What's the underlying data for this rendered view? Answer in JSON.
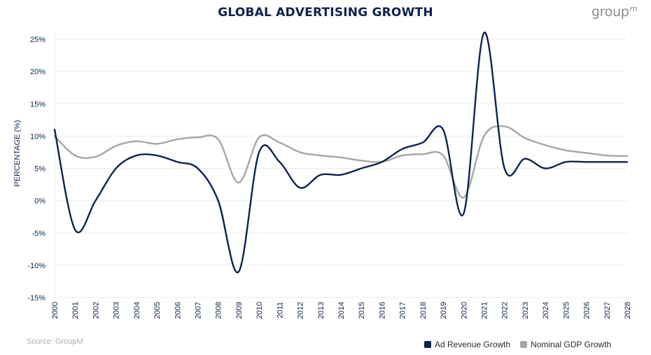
{
  "title": "GLOBAL ADVERTISING GROWTH",
  "brand": {
    "text": "group",
    "superscript": "m"
  },
  "source": "Source: GroupM",
  "colors": {
    "ad_revenue": "#0d2350",
    "nominal_gdp": "#a6a6a6",
    "title": "#0d2350"
  },
  "chart_data": {
    "type": "line",
    "title": "GLOBAL ADVERTISING GROWTH",
    "xlabel": "",
    "ylabel": "PERCENTAGE (%)",
    "ylim": [
      -15,
      25
    ],
    "yticks": [
      -15,
      -10,
      -5,
      0,
      5,
      10,
      15,
      20,
      25
    ],
    "ytick_labels": [
      "-15%",
      "-10%",
      "-5%",
      "0%",
      "5%",
      "10%",
      "15%",
      "20%",
      "25%"
    ],
    "xlim": [
      2000,
      2028
    ],
    "xticks": [
      "2000",
      "2001",
      "2002",
      "2003",
      "2004",
      "2005",
      "2006",
      "2007",
      "2008",
      "2009",
      "2010",
      "2011",
      "2012",
      "2013",
      "2014",
      "2015",
      "2016",
      "2017",
      "2018",
      "2019",
      "2020",
      "2021",
      "2022",
      "2023",
      "2024",
      "2025",
      "2026",
      "2027",
      "2028"
    ],
    "grid": true,
    "legend_position": "bottom-right",
    "series": [
      {
        "name": "Ad Revenue Growth",
        "color": "#0d2350",
        "points": [
          [
            2000,
            11
          ],
          [
            2001,
            -4.5
          ],
          [
            2002,
            0
          ],
          [
            2003,
            5
          ],
          [
            2004,
            7
          ],
          [
            2005,
            7
          ],
          [
            2006,
            6
          ],
          [
            2007,
            5
          ],
          [
            2008,
            0
          ],
          [
            2009,
            -11
          ],
          [
            2010,
            7.5
          ],
          [
            2011,
            6
          ],
          [
            2012,
            2
          ],
          [
            2013,
            4
          ],
          [
            2014,
            4
          ],
          [
            2015,
            5
          ],
          [
            2016,
            6
          ],
          [
            2017,
            8
          ],
          [
            2018,
            9
          ],
          [
            2019,
            11
          ],
          [
            2020,
            -2
          ],
          [
            2021,
            26
          ],
          [
            2022,
            5
          ],
          [
            2023,
            6.5
          ],
          [
            2024,
            5
          ],
          [
            2025,
            6
          ],
          [
            2026,
            6
          ],
          [
            2027,
            6
          ],
          [
            2028,
            6
          ]
        ]
      },
      {
        "name": "Nominal GDP Growth",
        "color": "#a6a6a6",
        "points": [
          [
            2000,
            10
          ],
          [
            2001,
            7
          ],
          [
            2002,
            6.8
          ],
          [
            2003,
            8.5
          ],
          [
            2004,
            9.2
          ],
          [
            2005,
            8.8
          ],
          [
            2006,
            9.5
          ],
          [
            2007,
            9.8
          ],
          [
            2008,
            9.5
          ],
          [
            2009,
            2.8
          ],
          [
            2010,
            9.8
          ],
          [
            2011,
            9
          ],
          [
            2012,
            7.5
          ],
          [
            2013,
            7
          ],
          [
            2014,
            6.7
          ],
          [
            2015,
            6.2
          ],
          [
            2016,
            6
          ],
          [
            2017,
            7
          ],
          [
            2018,
            7.2
          ],
          [
            2019,
            7
          ],
          [
            2020,
            0.5
          ],
          [
            2021,
            10
          ],
          [
            2022,
            11.5
          ],
          [
            2023,
            9.7
          ],
          [
            2024,
            8.6
          ],
          [
            2025,
            7.8
          ],
          [
            2026,
            7.4
          ],
          [
            2027,
            7
          ],
          [
            2028,
            6.9
          ]
        ]
      }
    ]
  }
}
